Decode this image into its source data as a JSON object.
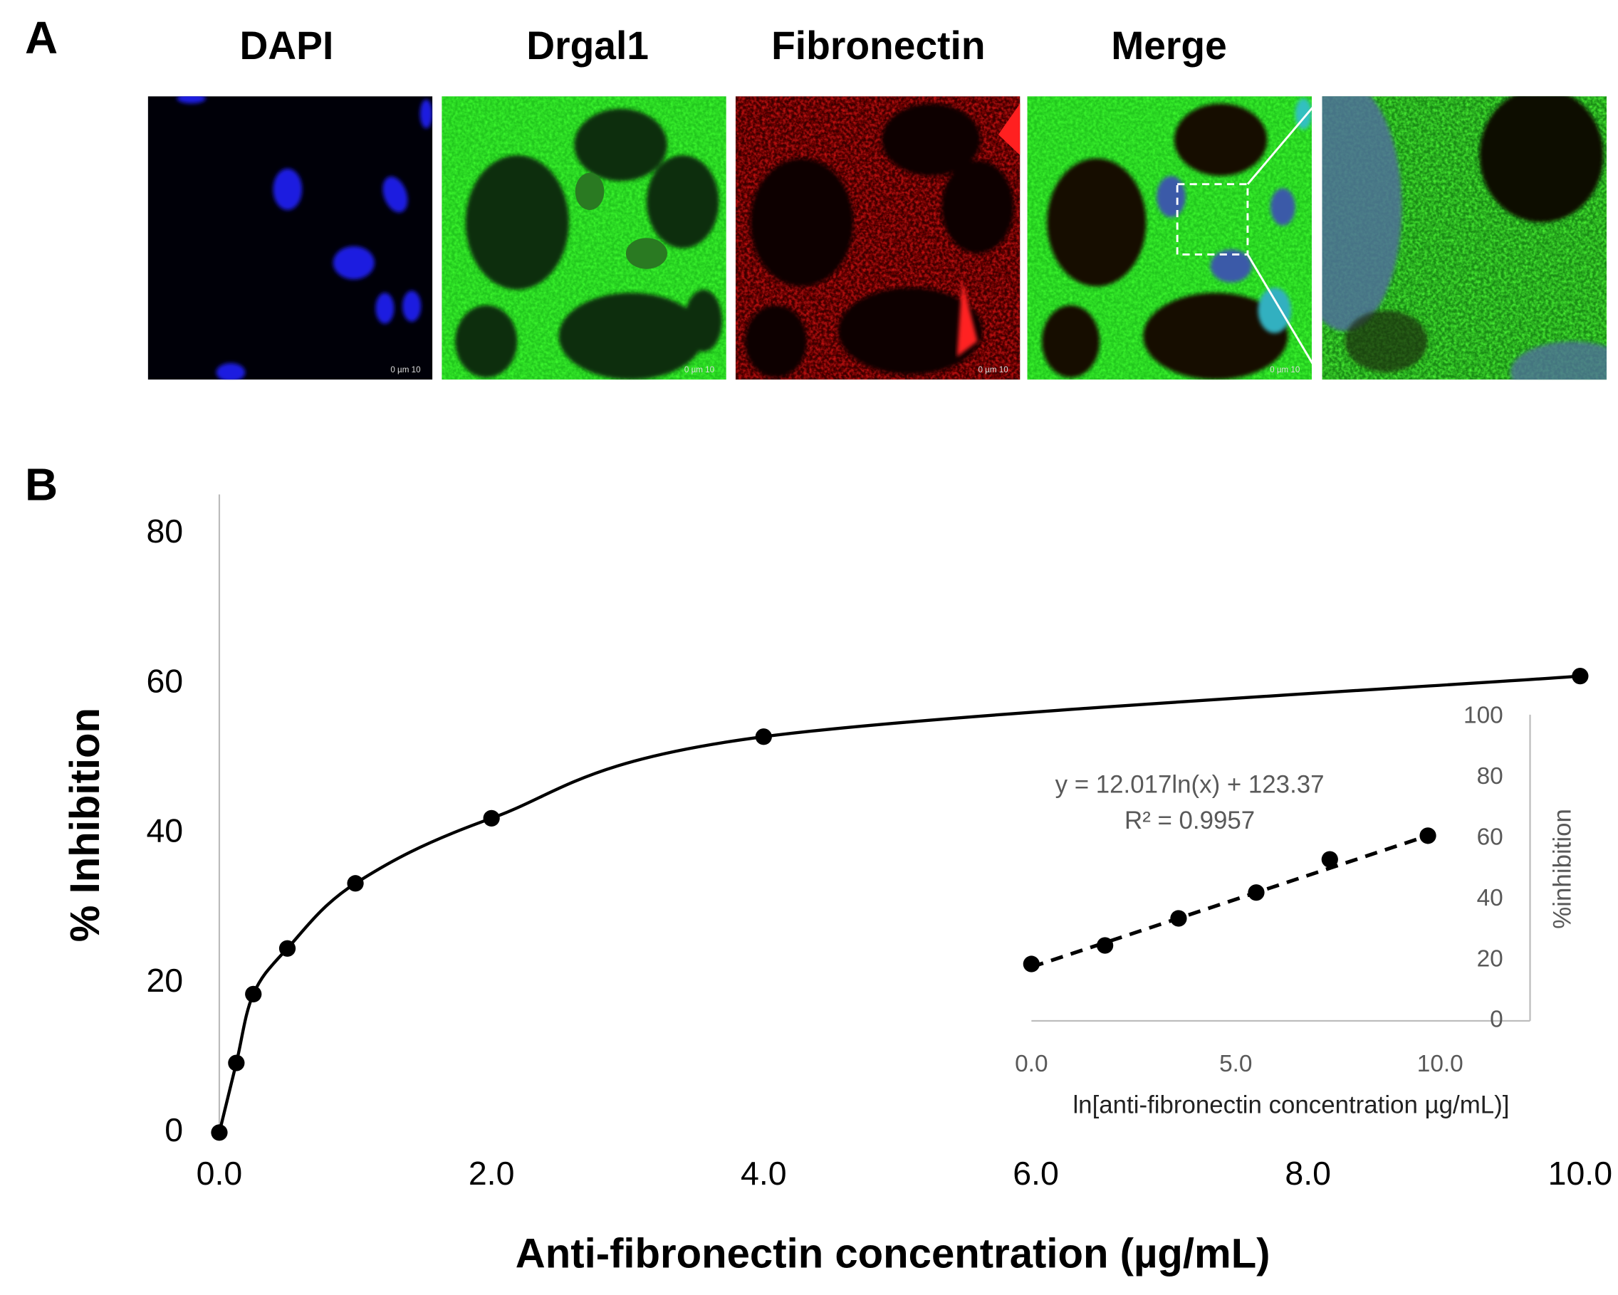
{
  "panel_a": {
    "label": "A",
    "channels": [
      "DAPI",
      "Drgal1",
      "Fibronectin",
      "Merge"
    ],
    "scale_bar_label": "0   µm  10"
  },
  "panel_b": {
    "label": "B"
  },
  "chart_data": [
    {
      "type": "line",
      "x": [
        0,
        0.125,
        0.25,
        0.5,
        1,
        2,
        4,
        10
      ],
      "series": [
        {
          "values": [
            0,
            9.3,
            18.5,
            24.6,
            33.3,
            42,
            52.9,
            61
          ],
          "color": "#000000"
        }
      ],
      "x_label": "Anti-fibronectin concentration (µg/mL)",
      "y_label": "% Inhibition",
      "xlim": [
        0,
        10.05
      ],
      "ylim": [
        0,
        85
      ],
      "xticks": [
        {
          "value": 0,
          "label": "0.0"
        },
        {
          "value": 2,
          "label": "2.0"
        },
        {
          "value": 4,
          "label": "4.0"
        },
        {
          "value": 6,
          "label": "6.0"
        },
        {
          "value": 8,
          "label": "8.0"
        },
        {
          "value": 10,
          "label": "10.0"
        }
      ],
      "yticks": [
        0,
        20,
        40,
        60,
        80
      ],
      "smooth": true,
      "markers": true
    },
    {
      "type": "scatter",
      "x": [
        0,
        1.8,
        3.6,
        5.5,
        7.3,
        9.7
      ],
      "values": [
        18.7,
        24.8,
        33.7,
        42.2,
        53.1,
        60.9
      ],
      "color": "#000000",
      "trendline": {
        "x": [
          0,
          9.7
        ],
        "values": [
          17.7,
          60.9
        ],
        "dashed": true
      },
      "annotations": [
        "y = 12.017ln(x) + 123.37",
        "R² = 0.9957"
      ],
      "x_label": "ln[anti-fibronectin concentration µg/mL)]",
      "y_label": "%inhibition",
      "xlim": [
        0,
        12.2
      ],
      "ylim": [
        0,
        100
      ],
      "xticks": [
        {
          "value": 0,
          "label": "0.0"
        },
        {
          "value": 5,
          "label": "5.0"
        },
        {
          "value": 10,
          "label": "10.0"
        }
      ],
      "yticks": [
        0,
        20,
        40,
        60,
        80,
        100
      ],
      "y_axis_side": "right"
    }
  ]
}
